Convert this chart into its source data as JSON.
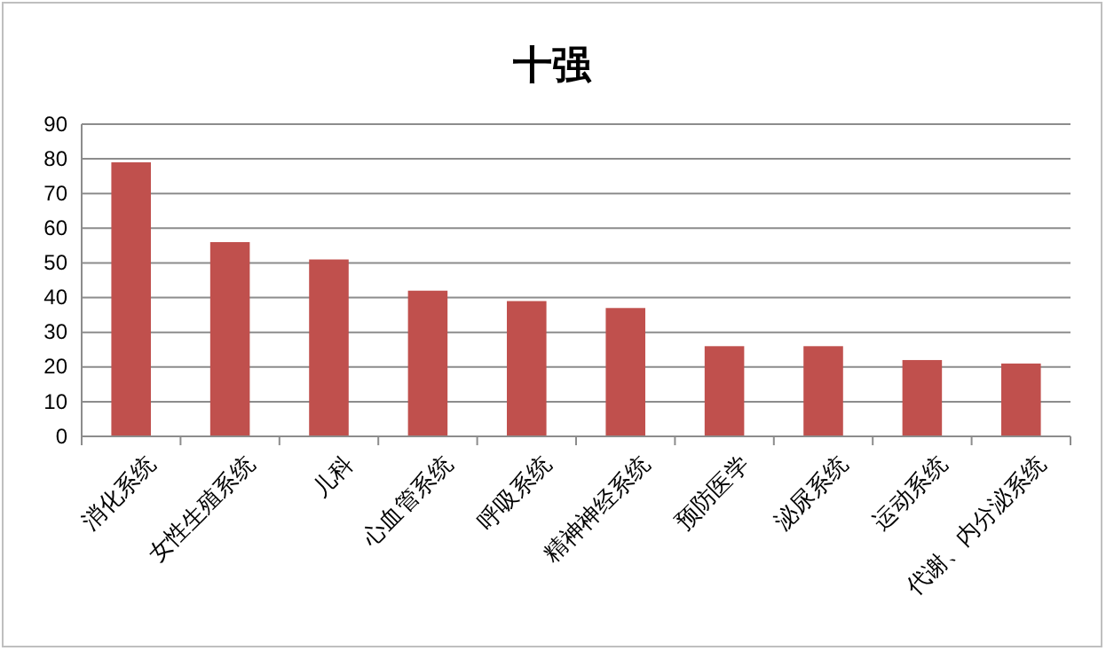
{
  "chart_data": {
    "type": "bar",
    "title": "十强",
    "categories": [
      "消化系统",
      "女性生殖系统",
      "儿科",
      "心血管系统",
      "呼吸系统",
      "精神神经系统",
      "预防医学",
      "泌尿系统",
      "运动系统",
      "代谢、内分泌系统"
    ],
    "values": [
      79,
      56,
      51,
      42,
      39,
      37,
      26,
      26,
      22,
      21
    ],
    "color": "#c0504d",
    "ylim": [
      0,
      90
    ],
    "yticks": [
      0,
      10,
      20,
      30,
      40,
      50,
      60,
      70,
      80,
      90
    ],
    "grid": "y"
  }
}
